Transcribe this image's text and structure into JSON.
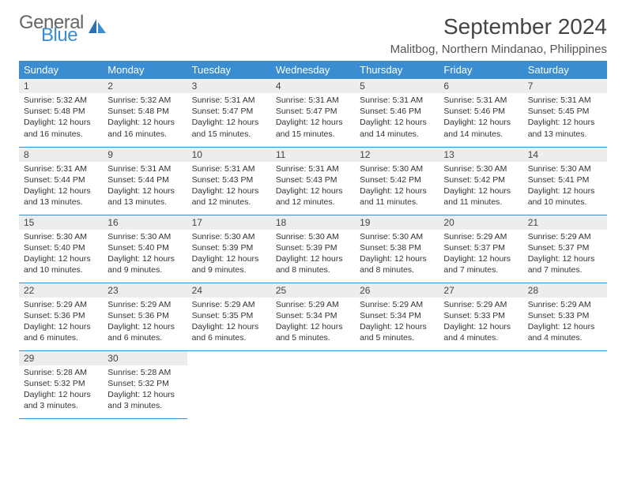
{
  "logo": {
    "line1": "General",
    "line2": "Blue"
  },
  "title": "September 2024",
  "location": "Malitbog, Northern Mindanao, Philippines",
  "colors": {
    "header_bg": "#3a8dd0",
    "header_text": "#ffffff",
    "daynum_bg": "#eceded",
    "body_text": "#333333",
    "title_text": "#444444",
    "rule": "#3a8dd0",
    "page_bg": "#ffffff"
  },
  "typography": {
    "title_fontsize": 28,
    "location_fontsize": 15,
    "dow_fontsize": 13,
    "daynum_fontsize": 12,
    "body_fontsize": 10.5
  },
  "daysOfWeek": [
    "Sunday",
    "Monday",
    "Tuesday",
    "Wednesday",
    "Thursday",
    "Friday",
    "Saturday"
  ],
  "weeks": [
    [
      {
        "n": "1",
        "sr": "Sunrise: 5:32 AM",
        "ss": "Sunset: 5:48 PM",
        "d1": "Daylight: 12 hours",
        "d2": "and 16 minutes."
      },
      {
        "n": "2",
        "sr": "Sunrise: 5:32 AM",
        "ss": "Sunset: 5:48 PM",
        "d1": "Daylight: 12 hours",
        "d2": "and 16 minutes."
      },
      {
        "n": "3",
        "sr": "Sunrise: 5:31 AM",
        "ss": "Sunset: 5:47 PM",
        "d1": "Daylight: 12 hours",
        "d2": "and 15 minutes."
      },
      {
        "n": "4",
        "sr": "Sunrise: 5:31 AM",
        "ss": "Sunset: 5:47 PM",
        "d1": "Daylight: 12 hours",
        "d2": "and 15 minutes."
      },
      {
        "n": "5",
        "sr": "Sunrise: 5:31 AM",
        "ss": "Sunset: 5:46 PM",
        "d1": "Daylight: 12 hours",
        "d2": "and 14 minutes."
      },
      {
        "n": "6",
        "sr": "Sunrise: 5:31 AM",
        "ss": "Sunset: 5:46 PM",
        "d1": "Daylight: 12 hours",
        "d2": "and 14 minutes."
      },
      {
        "n": "7",
        "sr": "Sunrise: 5:31 AM",
        "ss": "Sunset: 5:45 PM",
        "d1": "Daylight: 12 hours",
        "d2": "and 13 minutes."
      }
    ],
    [
      {
        "n": "8",
        "sr": "Sunrise: 5:31 AM",
        "ss": "Sunset: 5:44 PM",
        "d1": "Daylight: 12 hours",
        "d2": "and 13 minutes."
      },
      {
        "n": "9",
        "sr": "Sunrise: 5:31 AM",
        "ss": "Sunset: 5:44 PM",
        "d1": "Daylight: 12 hours",
        "d2": "and 13 minutes."
      },
      {
        "n": "10",
        "sr": "Sunrise: 5:31 AM",
        "ss": "Sunset: 5:43 PM",
        "d1": "Daylight: 12 hours",
        "d2": "and 12 minutes."
      },
      {
        "n": "11",
        "sr": "Sunrise: 5:31 AM",
        "ss": "Sunset: 5:43 PM",
        "d1": "Daylight: 12 hours",
        "d2": "and 12 minutes."
      },
      {
        "n": "12",
        "sr": "Sunrise: 5:30 AM",
        "ss": "Sunset: 5:42 PM",
        "d1": "Daylight: 12 hours",
        "d2": "and 11 minutes."
      },
      {
        "n": "13",
        "sr": "Sunrise: 5:30 AM",
        "ss": "Sunset: 5:42 PM",
        "d1": "Daylight: 12 hours",
        "d2": "and 11 minutes."
      },
      {
        "n": "14",
        "sr": "Sunrise: 5:30 AM",
        "ss": "Sunset: 5:41 PM",
        "d1": "Daylight: 12 hours",
        "d2": "and 10 minutes."
      }
    ],
    [
      {
        "n": "15",
        "sr": "Sunrise: 5:30 AM",
        "ss": "Sunset: 5:40 PM",
        "d1": "Daylight: 12 hours",
        "d2": "and 10 minutes."
      },
      {
        "n": "16",
        "sr": "Sunrise: 5:30 AM",
        "ss": "Sunset: 5:40 PM",
        "d1": "Daylight: 12 hours",
        "d2": "and 9 minutes."
      },
      {
        "n": "17",
        "sr": "Sunrise: 5:30 AM",
        "ss": "Sunset: 5:39 PM",
        "d1": "Daylight: 12 hours",
        "d2": "and 9 minutes."
      },
      {
        "n": "18",
        "sr": "Sunrise: 5:30 AM",
        "ss": "Sunset: 5:39 PM",
        "d1": "Daylight: 12 hours",
        "d2": "and 8 minutes."
      },
      {
        "n": "19",
        "sr": "Sunrise: 5:30 AM",
        "ss": "Sunset: 5:38 PM",
        "d1": "Daylight: 12 hours",
        "d2": "and 8 minutes."
      },
      {
        "n": "20",
        "sr": "Sunrise: 5:29 AM",
        "ss": "Sunset: 5:37 PM",
        "d1": "Daylight: 12 hours",
        "d2": "and 7 minutes."
      },
      {
        "n": "21",
        "sr": "Sunrise: 5:29 AM",
        "ss": "Sunset: 5:37 PM",
        "d1": "Daylight: 12 hours",
        "d2": "and 7 minutes."
      }
    ],
    [
      {
        "n": "22",
        "sr": "Sunrise: 5:29 AM",
        "ss": "Sunset: 5:36 PM",
        "d1": "Daylight: 12 hours",
        "d2": "and 6 minutes."
      },
      {
        "n": "23",
        "sr": "Sunrise: 5:29 AM",
        "ss": "Sunset: 5:36 PM",
        "d1": "Daylight: 12 hours",
        "d2": "and 6 minutes."
      },
      {
        "n": "24",
        "sr": "Sunrise: 5:29 AM",
        "ss": "Sunset: 5:35 PM",
        "d1": "Daylight: 12 hours",
        "d2": "and 6 minutes."
      },
      {
        "n": "25",
        "sr": "Sunrise: 5:29 AM",
        "ss": "Sunset: 5:34 PM",
        "d1": "Daylight: 12 hours",
        "d2": "and 5 minutes."
      },
      {
        "n": "26",
        "sr": "Sunrise: 5:29 AM",
        "ss": "Sunset: 5:34 PM",
        "d1": "Daylight: 12 hours",
        "d2": "and 5 minutes."
      },
      {
        "n": "27",
        "sr": "Sunrise: 5:29 AM",
        "ss": "Sunset: 5:33 PM",
        "d1": "Daylight: 12 hours",
        "d2": "and 4 minutes."
      },
      {
        "n": "28",
        "sr": "Sunrise: 5:29 AM",
        "ss": "Sunset: 5:33 PM",
        "d1": "Daylight: 12 hours",
        "d2": "and 4 minutes."
      }
    ],
    [
      {
        "n": "29",
        "sr": "Sunrise: 5:28 AM",
        "ss": "Sunset: 5:32 PM",
        "d1": "Daylight: 12 hours",
        "d2": "and 3 minutes."
      },
      {
        "n": "30",
        "sr": "Sunrise: 5:28 AM",
        "ss": "Sunset: 5:32 PM",
        "d1": "Daylight: 12 hours",
        "d2": "and 3 minutes."
      },
      null,
      null,
      null,
      null,
      null
    ]
  ]
}
